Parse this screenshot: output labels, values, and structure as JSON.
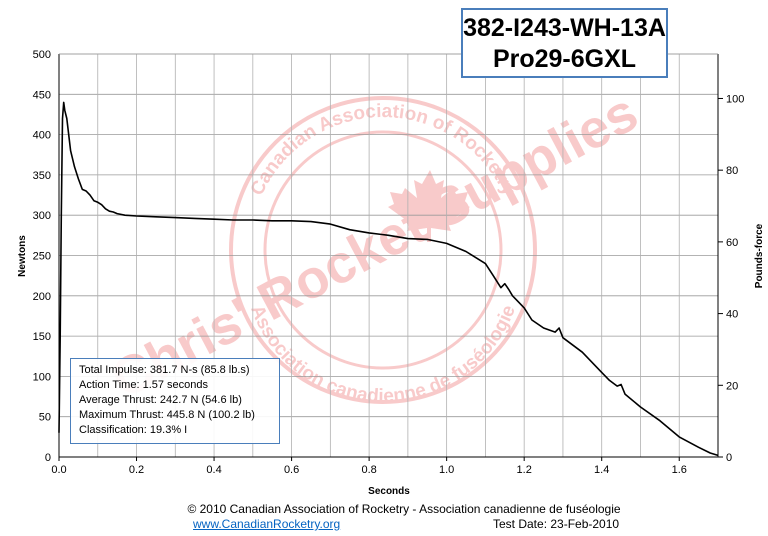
{
  "title": {
    "line1": "382-I243-WH-13A",
    "line2": "Pro29-6GXL"
  },
  "info": {
    "total_impulse": "Total Impulse: 381.7 N-s (85.8 lb.s)",
    "action_time": "Action Time: 1.57 seconds",
    "average_thrust": "Average Thrust: 242.7 N (54.6 lb)",
    "maximum_thrust": "Maximum Thrust: 445.8 N (100.2 lb)",
    "classification": "Classification: 19.3% I"
  },
  "footer": {
    "copyright": "© 2010 Canadian Association of Rocketry - Association canadienne de fuséologie",
    "link": "www.CanadianRocketry.org",
    "test_date": "Test  Date: 23-Feb-2010"
  },
  "watermark": {
    "brand": "Chris' Rocket Supplies",
    "ring_top": "Canadian Association of Rocketry",
    "ring_bottom": "Association canadienne de fuséologie",
    "color": "#f4a0a0"
  },
  "chart_data": {
    "type": "line",
    "xlabel": "Seconds",
    "ylabel": "Newtons",
    "y2label": "Pounds-force",
    "xlim": [
      0,
      1.7
    ],
    "ylim": [
      0,
      500
    ],
    "y2lim": [
      0,
      112.4
    ],
    "x_ticks": [
      "0.0",
      "0.2",
      "0.4",
      "0.6",
      "0.8",
      "1.0",
      "1.2",
      "1.4",
      "1.6"
    ],
    "y_ticks": [
      "0",
      "50",
      "100",
      "150",
      "200",
      "250",
      "300",
      "350",
      "400",
      "450",
      "500"
    ],
    "y2_ticks": [
      "0",
      "20",
      "40",
      "60",
      "80",
      "100"
    ],
    "grid": true,
    "line_color": "#000000",
    "series": [
      {
        "x": [
          0,
          0.003,
          0.006,
          0.009,
          0.012,
          0.015,
          0.02,
          0.025,
          0.03,
          0.04,
          0.05,
          0.06,
          0.07,
          0.08,
          0.09,
          0.1,
          0.11,
          0.12,
          0.13,
          0.14,
          0.15,
          0.17,
          0.2,
          0.25,
          0.3,
          0.35,
          0.4,
          0.45,
          0.5,
          0.55,
          0.6,
          0.65,
          0.7,
          0.75,
          0.8,
          0.85,
          0.9,
          0.95,
          1.0,
          1.05,
          1.1,
          1.12,
          1.14,
          1.15,
          1.16,
          1.17,
          1.18,
          1.2,
          1.22,
          1.25,
          1.28,
          1.29,
          1.3,
          1.35,
          1.4,
          1.42,
          1.44,
          1.45,
          1.46,
          1.5,
          1.55,
          1.6,
          1.65,
          1.68,
          1.7
        ],
        "y": [
          30,
          150,
          300,
          420,
          440,
          430,
          420,
          400,
          380,
          360,
          345,
          332,
          330,
          325,
          318,
          316,
          313,
          308,
          305,
          304,
          302,
          300,
          299,
          298,
          297,
          296,
          295,
          294,
          294,
          293,
          293,
          292,
          289,
          282,
          278,
          275,
          271,
          270,
          265,
          255,
          240,
          225,
          210,
          215,
          208,
          200,
          195,
          185,
          170,
          160,
          155,
          160,
          148,
          130,
          105,
          95,
          88,
          90,
          78,
          62,
          45,
          25,
          12,
          5,
          2
        ]
      }
    ]
  }
}
